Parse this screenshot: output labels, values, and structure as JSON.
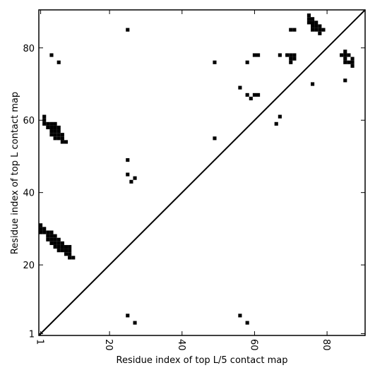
{
  "chart_data": {
    "type": "contact-map",
    "xlabel": "Residue index of top L/5 contact map",
    "ylabel": "Residue index of top L contact map",
    "color": "#000000",
    "xlim": [
      0.5,
      90.5
    ],
    "ylim": [
      0.5,
      90.5
    ],
    "xticks": [
      1,
      20,
      40,
      60,
      80
    ],
    "yticks": [
      1,
      20,
      40,
      60,
      80
    ],
    "x": [
      25,
      4,
      6,
      49,
      58,
      60,
      61,
      67,
      69,
      70,
      71,
      70,
      71,
      70,
      70,
      71,
      75,
      75,
      76,
      75,
      76,
      77,
      76,
      77,
      78,
      76,
      77,
      78,
      79,
      78,
      85,
      84,
      85,
      86,
      85,
      87,
      85,
      86,
      87,
      87,
      85,
      76,
      56,
      58,
      60,
      61,
      59,
      67,
      66,
      49,
      25,
      25,
      27,
      26,
      2,
      2,
      2,
      3,
      4,
      5,
      3,
      4,
      5,
      6,
      4,
      5,
      6,
      4,
      5,
      6,
      7,
      5,
      6,
      7,
      7,
      8,
      1,
      1,
      2,
      1,
      2,
      3,
      4,
      3,
      4,
      5,
      3,
      4,
      5,
      6,
      4,
      5,
      6,
      7,
      5,
      6,
      7,
      8,
      9,
      6,
      7,
      8,
      9,
      8,
      9,
      9,
      10,
      25,
      27,
      56,
      58
    ],
    "values": [
      85,
      78,
      76,
      76,
      76,
      78,
      78,
      78,
      78,
      78,
      78,
      77,
      77,
      76,
      85,
      85,
      89,
      88,
      88,
      87,
      87,
      87,
      86,
      86,
      86,
      85,
      85,
      85,
      85,
      84,
      79,
      78,
      78,
      78,
      77,
      77,
      76,
      76,
      76,
      75,
      71,
      70,
      69,
      67,
      67,
      67,
      66,
      61,
      59,
      55,
      49,
      45,
      44,
      43,
      61,
      60,
      59,
      59,
      59,
      59,
      58,
      58,
      58,
      58,
      57,
      57,
      57,
      56,
      56,
      56,
      56,
      55,
      55,
      55,
      54,
      54,
      31,
      30,
      30,
      29,
      29,
      29,
      29,
      28,
      28,
      28,
      27,
      27,
      27,
      27,
      26,
      26,
      26,
      26,
      25,
      25,
      25,
      25,
      25,
      24,
      24,
      24,
      24,
      23,
      23,
      22,
      22,
      6,
      4,
      6,
      4
    ]
  }
}
